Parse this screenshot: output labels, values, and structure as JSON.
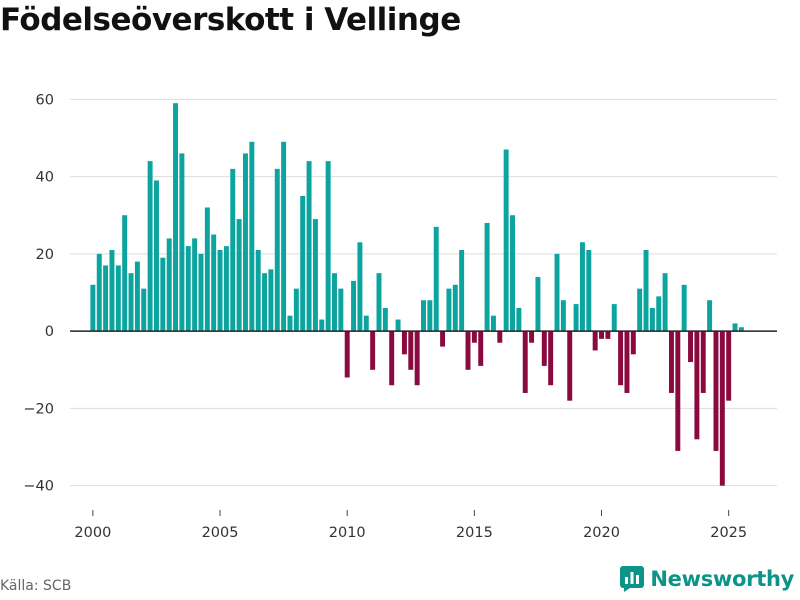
{
  "title": "Födelseöverskott i Vellinge",
  "source": "Källa: SCB",
  "brand": {
    "name": "Newsworthy"
  },
  "colors": {
    "positive": "#0ca49f",
    "negative": "#8a0a40",
    "grid": "#dddddd",
    "zero": "#222222",
    "brand": "#0d9488"
  },
  "chart_data": {
    "type": "bar",
    "title": "Födelseöverskott i Vellinge",
    "xlabel": "",
    "ylabel": "",
    "ylim": [
      -45,
      65
    ],
    "xlim": [
      1999.1,
      2026.9
    ],
    "yticks": [
      -40,
      -20,
      0,
      20,
      40,
      60
    ],
    "xticks": [
      2000,
      2005,
      2010,
      2015,
      2020,
      2025
    ],
    "y_tick_labels": [
      "−40",
      "−20",
      "0",
      "20",
      "40",
      "60"
    ],
    "x_tick_labels": [
      "2000",
      "2005",
      "2010",
      "2015",
      "2020",
      "2025"
    ],
    "frequency": "quarterly",
    "start": 2000,
    "values": [
      12,
      20,
      17,
      21,
      17,
      30,
      15,
      18,
      11,
      44,
      39,
      19,
      24,
      59,
      46,
      22,
      24,
      20,
      32,
      25,
      21,
      22,
      42,
      29,
      46,
      49,
      21,
      15,
      16,
      42,
      49,
      4,
      11,
      35,
      44,
      29,
      3,
      44,
      15,
      11,
      -12,
      13,
      23,
      4,
      -10,
      15,
      6,
      -14,
      3,
      -6,
      -10,
      -14,
      8,
      8,
      27,
      -4,
      11,
      12,
      21,
      -10,
      -3,
      -9,
      28,
      4,
      -3,
      47,
      30,
      6,
      -16,
      -3,
      14,
      -9,
      -14,
      20,
      8,
      -18,
      7,
      23,
      21,
      -5,
      -2,
      -2,
      7,
      -14,
      -16,
      -6,
      11,
      21,
      6,
      9,
      15,
      -16,
      -31,
      12,
      -8,
      -28,
      -16,
      8,
      -31,
      -40,
      -18,
      2,
      1
    ]
  }
}
